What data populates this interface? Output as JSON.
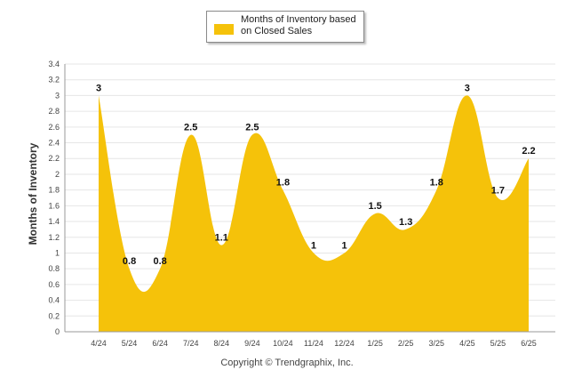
{
  "legend": {
    "label": "Months of Inventory based on Closed Sales"
  },
  "footer": {
    "copyright": "Copyright © Trendgraphix, Inc."
  },
  "colors": {
    "area": "#f5c20a",
    "grid": "#e6e6e6",
    "axis": "#999999"
  },
  "chart_data": {
    "type": "area",
    "title": "",
    "xlabel": "",
    "ylabel": "Months of Inventory",
    "categories": [
      "4/24",
      "5/24",
      "6/24",
      "7/24",
      "8/24",
      "9/24",
      "10/24",
      "11/24",
      "12/24",
      "1/25",
      "2/25",
      "3/25",
      "4/25",
      "5/25",
      "6/25"
    ],
    "series": [
      {
        "name": "Months of Inventory based on Closed Sales",
        "values": [
          3,
          0.8,
          0.8,
          2.5,
          1.1,
          2.5,
          1.8,
          1,
          1,
          1.5,
          1.3,
          1.8,
          3,
          1.7,
          2.2
        ],
        "data_labels": [
          "3",
          "0.8",
          "0.8",
          "2.5",
          "1.1",
          "2.5",
          "1.8",
          "1",
          "1",
          "1.5",
          "1.3",
          "1.8",
          "3",
          "1.7",
          "2.2"
        ]
      }
    ],
    "ylim": [
      0,
      3.4
    ],
    "yticks": [
      "0",
      "0.2",
      "0.4",
      "0.6",
      "0.8",
      "1",
      "1.2",
      "1.4",
      "1.6",
      "1.8",
      "2",
      "2.2",
      "2.4",
      "2.6",
      "2.8",
      "3",
      "3.2",
      "3.4"
    ],
    "grid": true,
    "legend_position": "top"
  }
}
